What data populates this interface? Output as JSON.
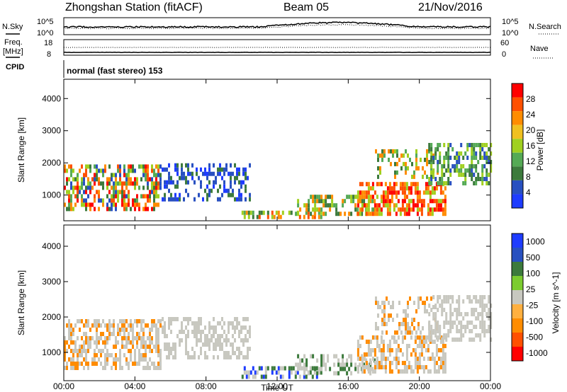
{
  "header": {
    "station": "Zhongshan Station (fitACF)",
    "beam": "Beam 05",
    "date": "21/Nov/2016"
  },
  "top_panels": {
    "nsky": {
      "label": "N.Sky",
      "left_ticks": [
        "10^5",
        "10^0"
      ],
      "right_ticks": [
        "10^5",
        "10^0"
      ],
      "right_label": "N.Search",
      "right_legend_style": "dotted"
    },
    "freq": {
      "label_line1": "Freq.",
      "label_line2": "[MHz]",
      "left_ticks": [
        "18",
        "8"
      ],
      "right_ticks": [
        "60",
        "0"
      ],
      "right_label": "Nave",
      "right_legend_style": "dotted"
    },
    "cpid": {
      "label": "CPID",
      "value": "normal (fast stereo) 153"
    }
  },
  "time_axis": {
    "label": "Time UT",
    "ticks": [
      "00:00",
      "04:00",
      "08:00",
      "12:00",
      "16:00",
      "20:00",
      "00:00"
    ]
  },
  "colors": {
    "power_scale": [
      "#1e3cff",
      "#2850c0",
      "#3c7a3c",
      "#55aa55",
      "#a0d020",
      "#f0c020",
      "#ff8c00",
      "#ff5000",
      "#ff0000"
    ],
    "velocity_scale": [
      "#1e3cff",
      "#2850c0",
      "#3c7a3c",
      "#7ccc30",
      "#c8c8c0",
      "#ffb040",
      "#ff8c00",
      "#ff5000",
      "#ff0000"
    ]
  },
  "chart_data": [
    {
      "type": "heatmap",
      "name": "power",
      "ylabel": "Slant Range [km]",
      "xlabel": "Time UT",
      "yticks": [
        1000,
        2000,
        3000,
        4000
      ],
      "ylim": [
        200,
        4600
      ],
      "xlim_hours": [
        0,
        24
      ],
      "colorbar": {
        "label": "Power [dB]",
        "ticks": [
          "4",
          "8",
          "12",
          "16",
          "20",
          "24",
          "28"
        ],
        "range": [
          0,
          30
        ]
      },
      "regions": [
        {
          "t": [
            0.0,
            5.5
          ],
          "r": [
            500,
            1900
          ],
          "levels": [
            4,
            8,
            12,
            16,
            20,
            24,
            28
          ],
          "density": 0.55
        },
        {
          "t": [
            5.5,
            10.5
          ],
          "r": [
            800,
            1900
          ],
          "levels": [
            2,
            4,
            6,
            8
          ],
          "density": 0.4
        },
        {
          "t": [
            10.0,
            14.5
          ],
          "r": [
            250,
            500
          ],
          "levels": [
            8,
            12,
            16,
            20,
            24
          ],
          "density": 0.55
        },
        {
          "t": [
            13.0,
            17.5
          ],
          "r": [
            350,
            900
          ],
          "levels": [
            8,
            12,
            16,
            20
          ],
          "density": 0.4
        },
        {
          "t": [
            16.5,
            21.5
          ],
          "r": [
            350,
            1400
          ],
          "levels": [
            16,
            20,
            24,
            28
          ],
          "density": 0.6
        },
        {
          "t": [
            17.5,
            21.0
          ],
          "r": [
            1500,
            2300
          ],
          "levels": [
            8,
            12,
            16,
            20
          ],
          "density": 0.35
        },
        {
          "t": [
            20.5,
            24.0
          ],
          "r": [
            1300,
            2500
          ],
          "levels": [
            4,
            8,
            12,
            16
          ],
          "density": 0.55
        }
      ]
    },
    {
      "type": "heatmap",
      "name": "velocity",
      "ylabel": "Slant Range [km]",
      "xlabel": "Time UT",
      "yticks": [
        1000,
        2000,
        3000,
        4000
      ],
      "ylim": [
        200,
        4600
      ],
      "xlim_hours": [
        0,
        24
      ],
      "colorbar": {
        "label": "Velocity [m s^-1]",
        "ticks": [
          "1000",
          "500",
          "100",
          "25",
          "-25",
          "-100",
          "-500",
          "-1000"
        ],
        "range": [
          -1200,
          1200
        ]
      },
      "regions": [
        {
          "t": [
            0.0,
            5.5
          ],
          "r": [
            500,
            1900
          ],
          "levels": [
            -500,
            -100,
            0
          ],
          "density": 0.55
        },
        {
          "t": [
            5.5,
            10.5
          ],
          "r": [
            800,
            1900
          ],
          "levels": [
            0,
            -25,
            25
          ],
          "density": 0.45
        },
        {
          "t": [
            10.0,
            14.5
          ],
          "r": [
            250,
            600
          ],
          "levels": [
            500,
            1000,
            100
          ],
          "density": 0.55
        },
        {
          "t": [
            13.0,
            17.5
          ],
          "r": [
            350,
            900
          ],
          "levels": [
            100,
            500,
            0
          ],
          "density": 0.4
        },
        {
          "t": [
            16.5,
            21.5
          ],
          "r": [
            400,
            1400
          ],
          "levels": [
            -500,
            -100,
            0
          ],
          "density": 0.55
        },
        {
          "t": [
            17.5,
            21.0
          ],
          "r": [
            1500,
            2500
          ],
          "levels": [
            -100,
            -500,
            0
          ],
          "density": 0.35
        },
        {
          "t": [
            20.5,
            24.0
          ],
          "r": [
            1300,
            2600
          ],
          "levels": [
            0,
            0,
            -100
          ],
          "density": 0.5
        }
      ]
    }
  ]
}
